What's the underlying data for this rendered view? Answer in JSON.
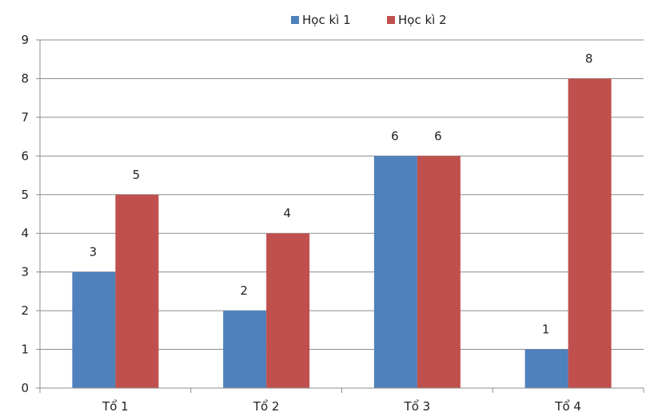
{
  "chart_data": {
    "type": "bar",
    "title": "",
    "xlabel": "",
    "ylabel": "",
    "categories": [
      "Tổ 1",
      "Tổ 2",
      "Tổ 3",
      "Tổ 4"
    ],
    "series": [
      {
        "name": "Học kì 1",
        "color": "#4f81bd",
        "values": [
          3,
          2,
          6,
          1
        ]
      },
      {
        "name": "Học kì 2",
        "color": "#c0504d",
        "values": [
          5,
          4,
          6,
          8
        ]
      }
    ],
    "ylim": [
      0,
      9
    ],
    "yticks": [
      0,
      1,
      2,
      3,
      4,
      5,
      6,
      7,
      8,
      9
    ],
    "grid": true,
    "legend_position": "top",
    "data_labels": true
  }
}
